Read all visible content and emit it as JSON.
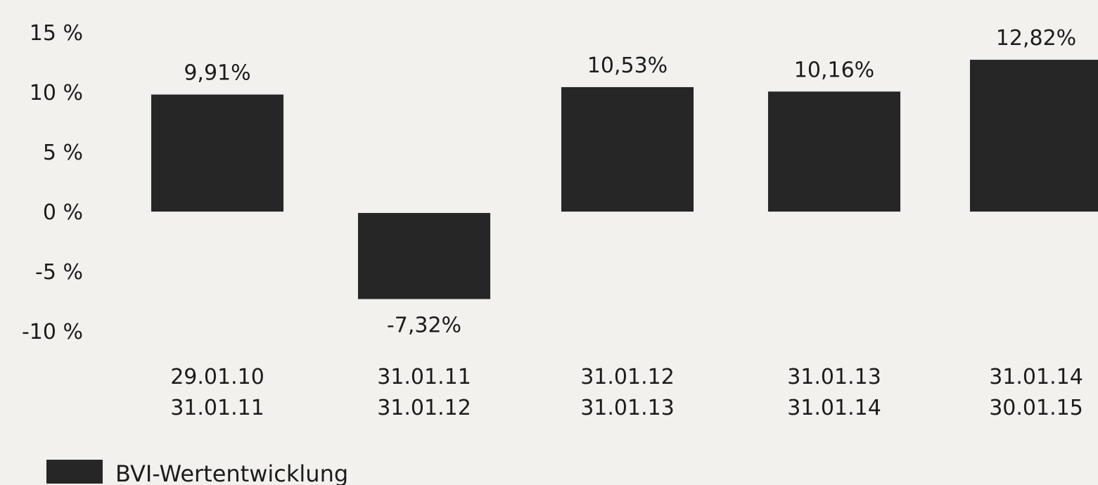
{
  "chart_data": {
    "type": "bar",
    "categories": [
      [
        "29.01.10",
        "31.01.11"
      ],
      [
        "31.01.11",
        "31.01.12"
      ],
      [
        "31.01.12",
        "31.01.13"
      ],
      [
        "31.01.13",
        "31.01.14"
      ],
      [
        "31.01.14",
        "30.01.15"
      ]
    ],
    "series": [
      {
        "name": "BVI-Wertentwicklung",
        "values": [
          9.91,
          -7.32,
          10.53,
          10.16,
          12.82
        ],
        "value_labels": [
          "9,91%",
          "-7,32%",
          "10,53%",
          "10,16%",
          "12,82%"
        ],
        "color": "#262626"
      }
    ],
    "yticks": [
      15,
      10,
      5,
      0,
      -5,
      -10
    ],
    "ytick_labels": [
      "15 %",
      "10 %",
      "5 %",
      "0 %",
      "-5 %",
      "-10 %"
    ],
    "ylim": [
      -10,
      15
    ],
    "grid": false,
    "legend": "bottom-left",
    "title": "",
    "xlabel": "",
    "ylabel": ""
  }
}
